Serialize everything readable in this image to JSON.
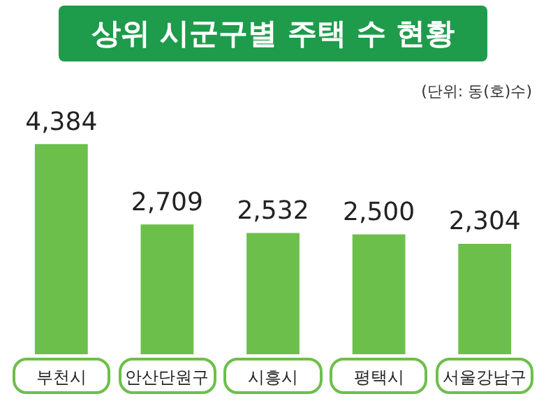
{
  "chart_data": {
    "type": "bar",
    "title": "상위 시군구별 주택 수 현황",
    "annotations": [
      "(단위: 동(호)수)"
    ],
    "categories": [
      "부천시",
      "안산단원구",
      "시흥시",
      "평택시",
      "서울강남구"
    ],
    "values": [
      4384,
      2709,
      2532,
      2500,
      2304
    ],
    "value_labels": [
      "4,384",
      "2,709",
      "2,532",
      "2,500",
      "2,304"
    ],
    "color": "#6dbf4b"
  }
}
